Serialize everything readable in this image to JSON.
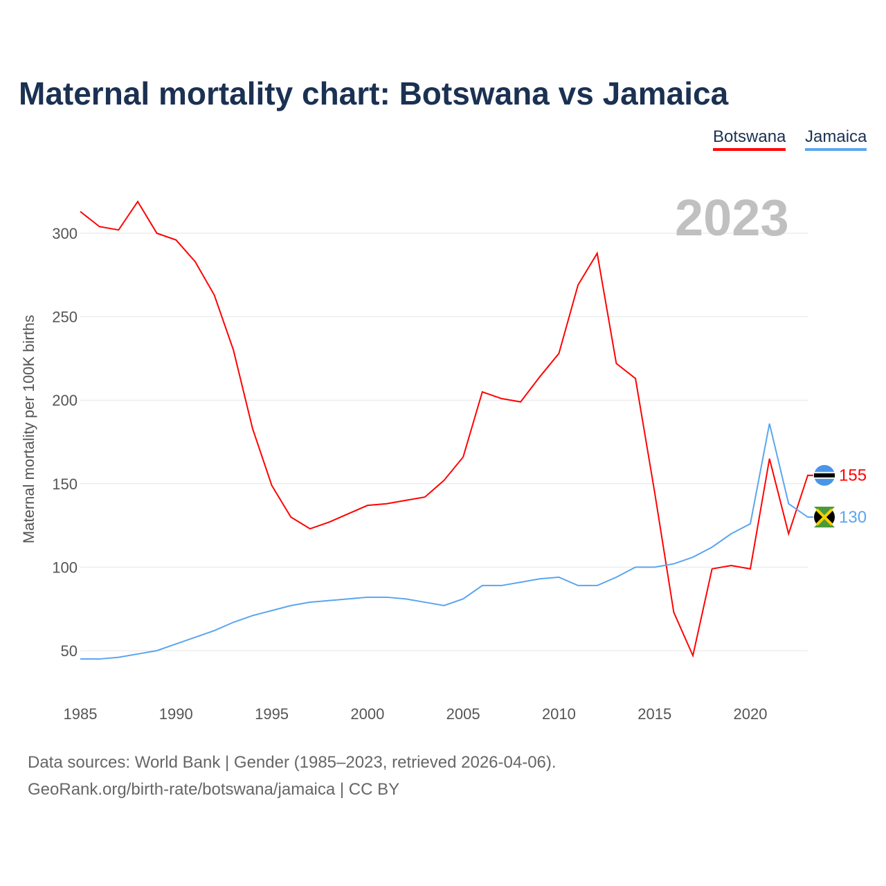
{
  "chart_data": {
    "type": "line",
    "title": "Maternal mortality chart: Botswana vs Jamaica",
    "ylabel": "Maternal mortality per 100K births",
    "xlabel": "",
    "year_label": "2023",
    "ylim": [
      25,
      330
    ],
    "xlim": [
      1985,
      2023
    ],
    "yticks": [
      50,
      100,
      150,
      200,
      250,
      300
    ],
    "xticks": [
      1985,
      1990,
      1995,
      2000,
      2005,
      2010,
      2015,
      2020
    ],
    "grid": true,
    "legend_placement": "top-right",
    "x": [
      1985,
      1986,
      1987,
      1988,
      1989,
      1990,
      1991,
      1992,
      1993,
      1994,
      1995,
      1996,
      1997,
      1998,
      1999,
      2000,
      2001,
      2002,
      2003,
      2004,
      2005,
      2006,
      2007,
      2008,
      2009,
      2010,
      2011,
      2012,
      2013,
      2014,
      2015,
      2016,
      2017,
      2018,
      2019,
      2020,
      2021,
      2022,
      2023
    ],
    "series": [
      {
        "name": "Botswana",
        "color": "#ff0000",
        "end_label": "155",
        "values": [
          313,
          304,
          302,
          319,
          300,
          296,
          283,
          263,
          230,
          183,
          149,
          130,
          123,
          127,
          132,
          137,
          138,
          140,
          142,
          152,
          166,
          205,
          201,
          199,
          214,
          228,
          269,
          288,
          222,
          213,
          145,
          73,
          47,
          99,
          101,
          99,
          165,
          120,
          155
        ]
      },
      {
        "name": "Jamaica",
        "color": "#5aa5ef",
        "end_label": "130",
        "values": [
          45,
          45,
          46,
          48,
          50,
          54,
          58,
          62,
          67,
          71,
          74,
          77,
          79,
          80,
          81,
          82,
          82,
          81,
          79,
          77,
          81,
          89,
          89,
          91,
          93,
          94,
          89,
          89,
          94,
          100,
          100,
          102,
          106,
          112,
          120,
          126,
          186,
          138,
          130
        ]
      }
    ]
  },
  "footer": {
    "line1": "Data sources: World Bank | Gender (1985–2023, retrieved 2026-04-06).",
    "line2": "GeoRank.org/birth-rate/botswana/jamaica | CC BY"
  }
}
